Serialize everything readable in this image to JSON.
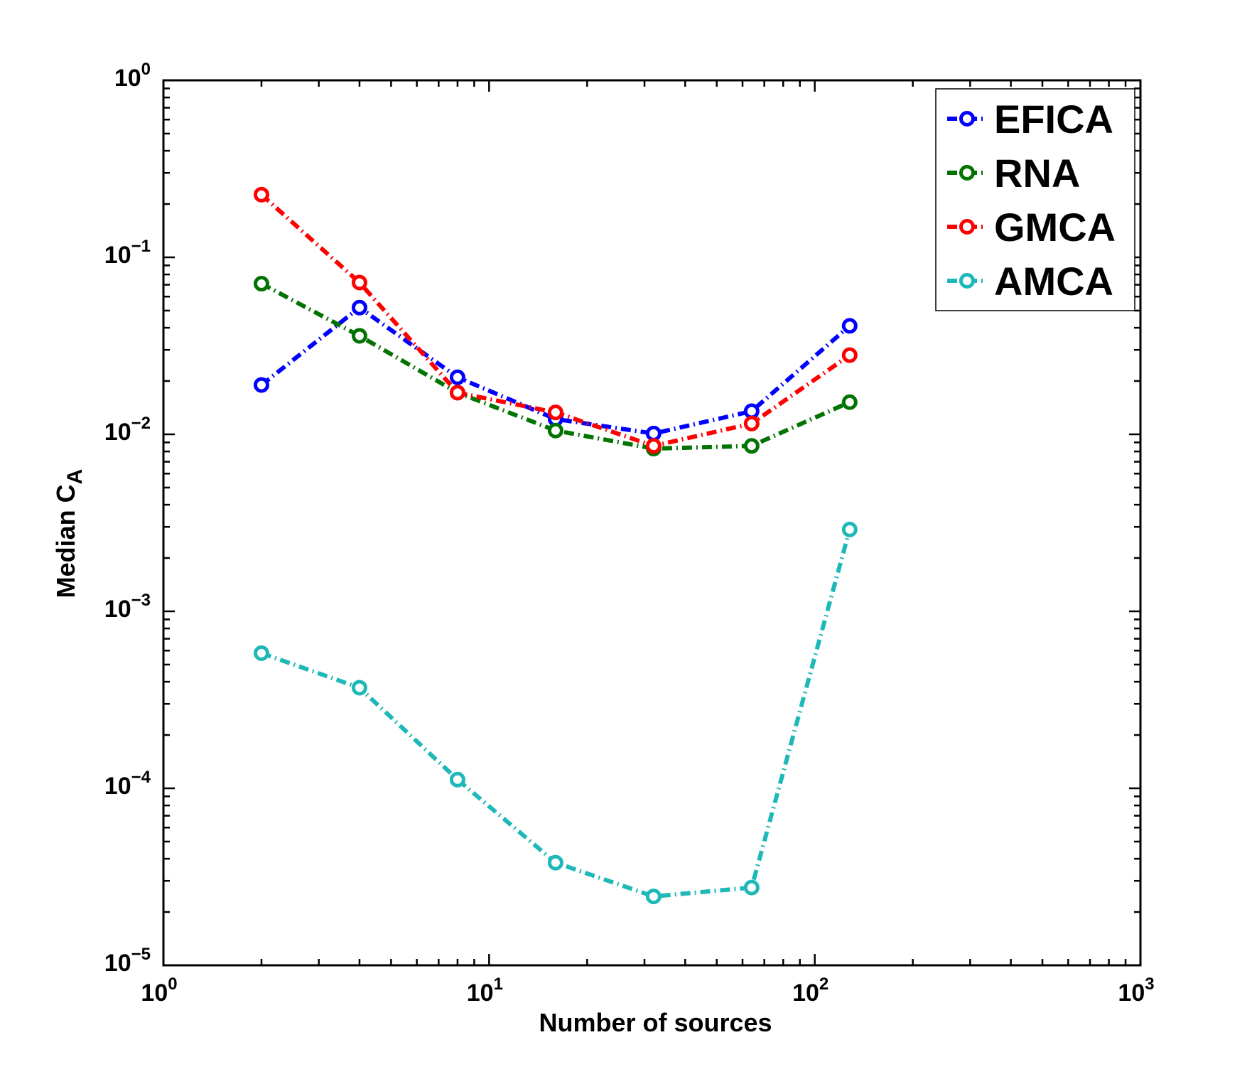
{
  "chart_data": {
    "type": "line",
    "title": "",
    "xlabel": "Number of sources",
    "ylabel": "Median C",
    "ylabel_sub": "A",
    "xscale": "log",
    "yscale": "log",
    "xlim": [
      1,
      1000
    ],
    "ylim": [
      1e-05,
      1
    ],
    "x_ticks": [
      {
        "base": "10",
        "exp": "0"
      },
      {
        "base": "10",
        "exp": "1"
      },
      {
        "base": "10",
        "exp": "2"
      },
      {
        "base": "10",
        "exp": "3"
      }
    ],
    "y_ticks": [
      {
        "base": "10",
        "exp": "−5"
      },
      {
        "base": "10",
        "exp": "−4"
      },
      {
        "base": "10",
        "exp": "−3"
      },
      {
        "base": "10",
        "exp": "−2"
      },
      {
        "base": "10",
        "exp": "−1"
      },
      {
        "base": "10",
        "exp": "0"
      }
    ],
    "grid": false,
    "legend_position": "top-right",
    "x": [
      2,
      4,
      8,
      16,
      32,
      64,
      128
    ],
    "series": [
      {
        "name": "EFICA",
        "color": "#0000ff",
        "values": [
          0.019,
          0.052,
          0.021,
          0.0122,
          0.0101,
          0.0135,
          0.041
        ]
      },
      {
        "name": "RNA",
        "color": "#007300",
        "values": [
          0.071,
          0.036,
          0.0172,
          0.0105,
          0.0083,
          0.0086,
          0.0152
        ]
      },
      {
        "name": "GMCA",
        "color": "#ff0000",
        "values": [
          0.226,
          0.072,
          0.0172,
          0.0133,
          0.0086,
          0.0115,
          0.028
        ]
      },
      {
        "name": "AMCA",
        "color": "#1fb8b8",
        "values": [
          0.00058,
          0.00037,
          0.000112,
          3.8e-05,
          2.45e-05,
          2.75e-05,
          0.0029
        ]
      }
    ]
  }
}
